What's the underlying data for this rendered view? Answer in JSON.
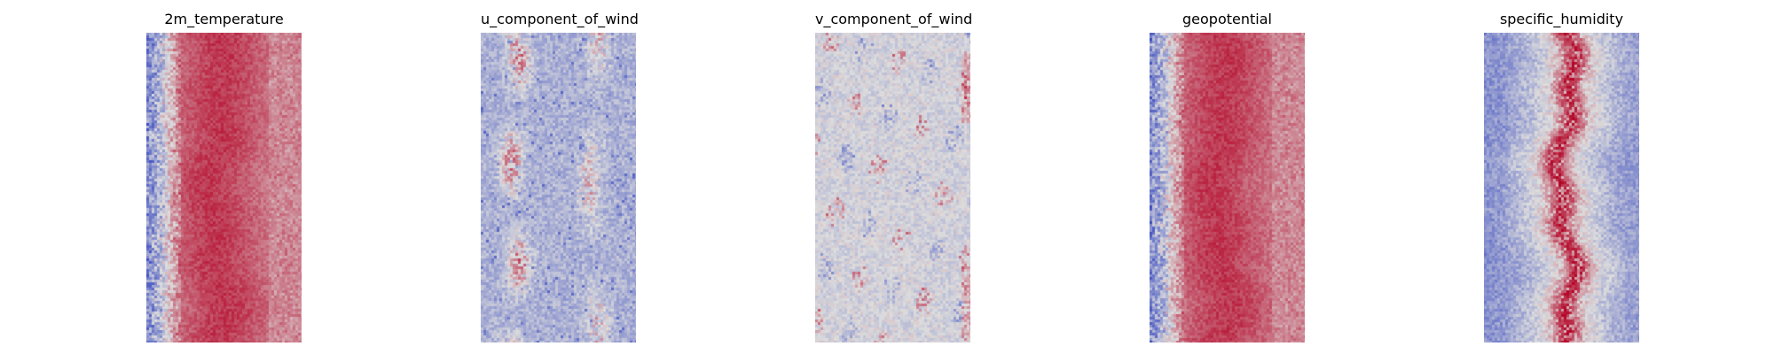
{
  "chart_data": [
    {
      "type": "heatmap",
      "title": "2m_temperature",
      "colormap": "coolwarm",
      "pattern": "warm-band",
      "axes": "off"
    },
    {
      "type": "heatmap",
      "title": "u_component_of_wind",
      "colormap": "coolwarm",
      "pattern": "cool-field-with-streaks",
      "axes": "off"
    },
    {
      "type": "heatmap",
      "title": "v_component_of_wind",
      "colormap": "coolwarm",
      "pattern": "neutral-field",
      "axes": "off"
    },
    {
      "type": "heatmap",
      "title": "geopotential",
      "colormap": "coolwarm",
      "pattern": "warm-band",
      "axes": "off"
    },
    {
      "type": "heatmap",
      "title": "specific_humidity",
      "colormap": "coolwarm",
      "pattern": "cool-field-center-warm",
      "axes": "off"
    }
  ],
  "colors": {
    "cold": "#3b4cc0",
    "neutral": "#dddddd",
    "warm": "#b40426"
  }
}
